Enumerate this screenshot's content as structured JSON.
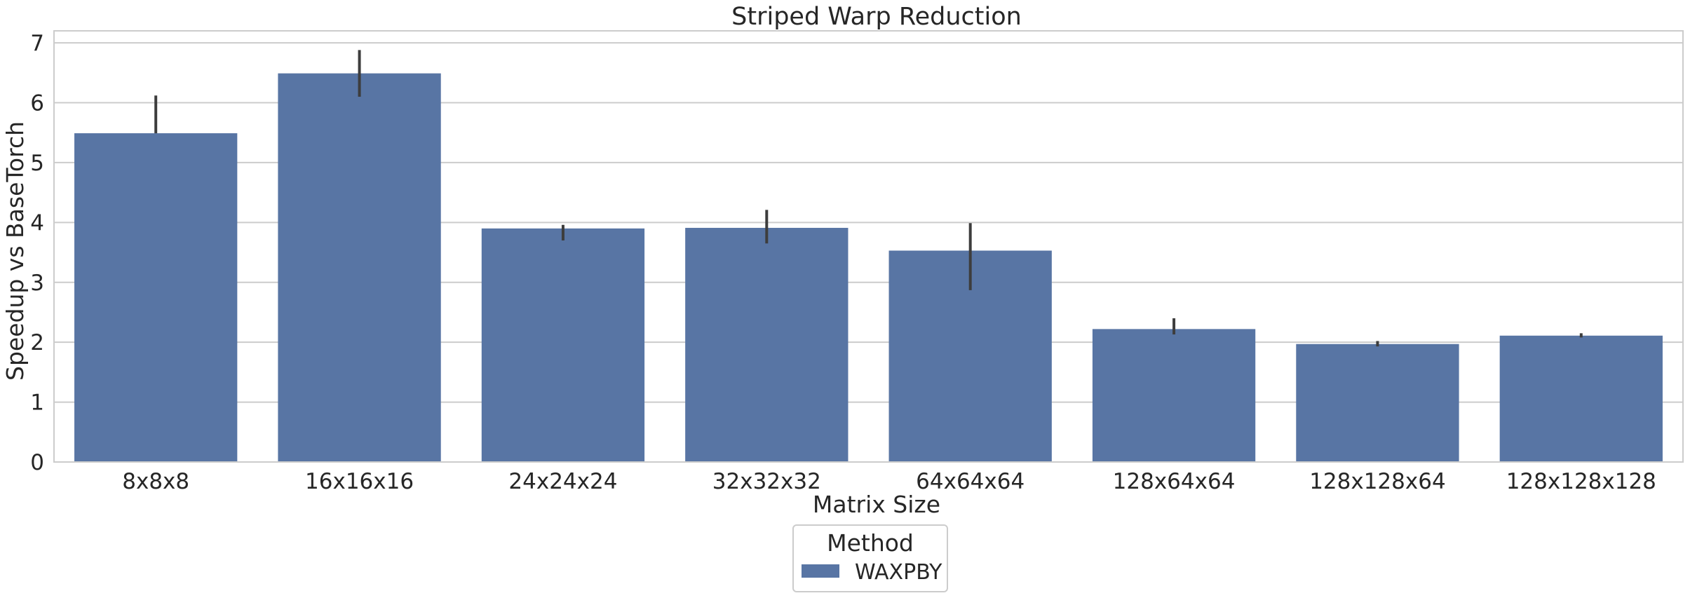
{
  "chart_data": {
    "type": "bar",
    "title": "Striped Warp Reduction",
    "xlabel": "Matrix Size",
    "ylabel": "Speedup vs BaseTorch",
    "ylim": [
      0,
      7.2
    ],
    "yticks": [
      0,
      1,
      2,
      3,
      4,
      5,
      6,
      7
    ],
    "grid": true,
    "categories": [
      "8x8x8",
      "16x16x16",
      "24x24x24",
      "32x32x32",
      "64x64x64",
      "128x64x64",
      "128x128x64",
      "128x128x128"
    ],
    "series": [
      {
        "name": "WAXPBY",
        "color": "#5875a4",
        "values": [
          5.49,
          6.49,
          3.9,
          3.91,
          3.53,
          2.22,
          1.97,
          2.11
        ],
        "error_low": [
          5.49,
          6.1,
          3.7,
          3.65,
          2.87,
          2.13,
          1.93,
          2.08
        ],
        "error_high": [
          6.12,
          6.88,
          3.96,
          4.21,
          3.99,
          2.4,
          2.02,
          2.15
        ]
      }
    ],
    "legend": {
      "title": "Method",
      "placement": "bottom-center"
    }
  }
}
